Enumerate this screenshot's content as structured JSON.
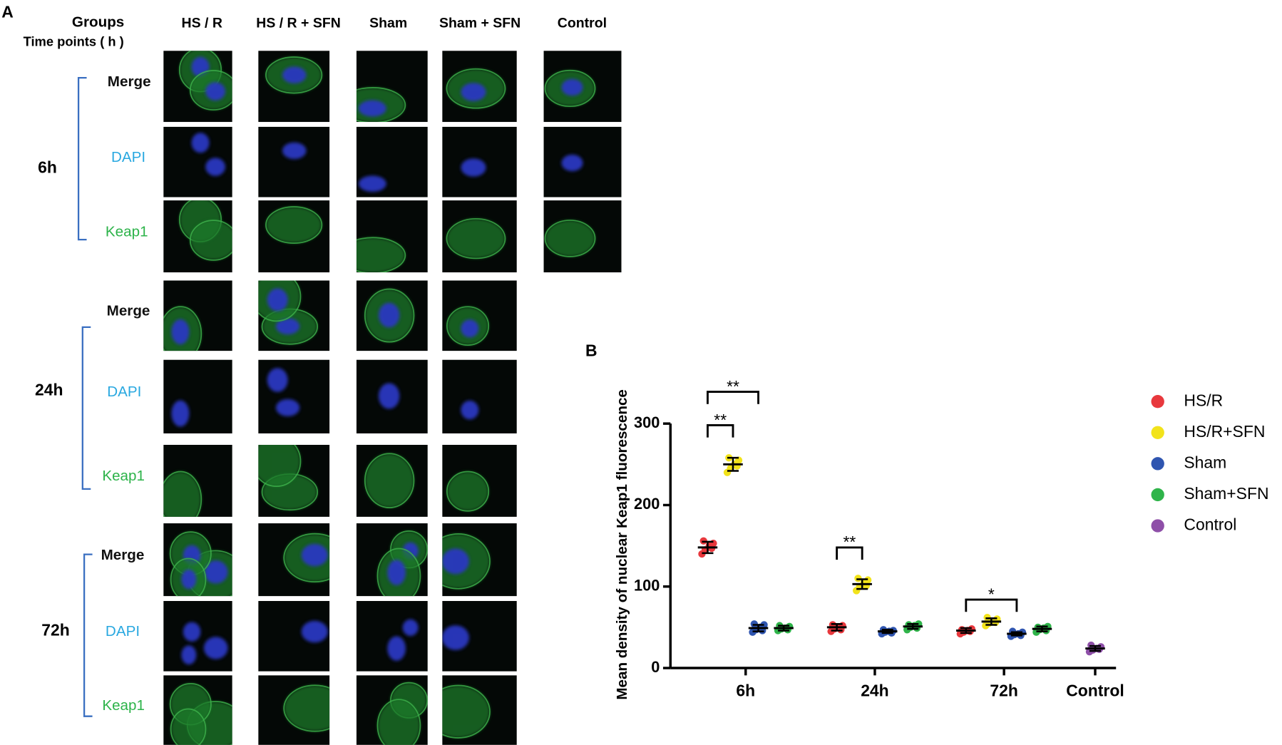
{
  "panel_a": {
    "label": "A",
    "header": {
      "groups": "Groups",
      "time_points": "Time points ( h )",
      "columns": [
        "HS / R",
        "HS / R + SFN",
        "Sham",
        "Sham + SFN",
        "Control"
      ]
    },
    "rows": [
      {
        "time": "6h",
        "channels": [
          "Merge",
          "DAPI",
          "Keap1"
        ]
      },
      {
        "time": "24h",
        "channels": [
          "Merge",
          "DAPI",
          "Keap1"
        ]
      },
      {
        "time": "72h",
        "channels": [
          "Merge",
          "DAPI",
          "Keap1"
        ]
      }
    ]
  },
  "chart_data": {
    "type": "scatter",
    "panel_label": "B",
    "ylabel": "Mean density of nuclear Keap1 fluorescence",
    "categories": [
      "6h",
      "24h",
      "72h",
      "Control"
    ],
    "ylim": [
      0,
      300
    ],
    "yticks": [
      0,
      100,
      200,
      300
    ],
    "series": [
      {
        "name": "HS/R",
        "color": "#e8383d",
        "values": [
          148,
          50,
          46,
          null
        ],
        "errors": [
          7,
          4,
          3,
          null
        ],
        "points": [
          [
            140,
            145,
            150,
            153,
            156,
            147
          ],
          [
            45,
            48,
            50,
            52,
            53,
            47
          ],
          [
            42,
            44,
            46,
            48,
            47,
            45
          ],
          null
        ]
      },
      {
        "name": "HS/R+SFN",
        "color": "#f2e31b",
        "values": [
          250,
          103,
          57,
          null
        ],
        "errors": [
          8,
          6,
          4,
          null
        ],
        "points": [
          [
            240,
            245,
            250,
            255,
            258,
            248
          ],
          [
            95,
            100,
            104,
            108,
            110,
            101
          ],
          [
            52,
            55,
            57,
            60,
            62,
            56
          ],
          null
        ]
      },
      {
        "name": "Sham",
        "color": "#2f55b0",
        "values": [
          49,
          45,
          42,
          null
        ],
        "errors": [
          4,
          2,
          2,
          null
        ],
        "points": [
          [
            44,
            47,
            50,
            53,
            54,
            46
          ],
          [
            42,
            44,
            45,
            46,
            47,
            43
          ],
          [
            39,
            41,
            42,
            44,
            45,
            40
          ],
          null
        ]
      },
      {
        "name": "Sham+SFN",
        "color": "#2fb44a",
        "values": [
          49,
          51,
          48,
          null
        ],
        "errors": [
          3,
          3,
          3,
          null
        ],
        "points": [
          [
            46,
            48,
            49,
            51,
            52,
            47
          ],
          [
            47,
            50,
            52,
            54,
            53,
            49
          ],
          [
            44,
            47,
            49,
            51,
            50,
            46
          ],
          null
        ]
      },
      {
        "name": "Control",
        "color": "#8e4fa8",
        "values": [
          null,
          null,
          null,
          24
        ],
        "errors": [
          null,
          null,
          null,
          3
        ],
        "points": [
          null,
          null,
          null,
          [
            20,
            22,
            24,
            26,
            28,
            23
          ]
        ]
      }
    ],
    "annotations": [
      {
        "label": "**",
        "category": 0,
        "from": 0,
        "to": 1,
        "y": 298
      },
      {
        "label": "**",
        "category": 0,
        "from": 0,
        "to": 2,
        "y": 339
      },
      {
        "label": "**",
        "category": 1,
        "from": 0,
        "to": 1,
        "y": 148
      },
      {
        "label": "*",
        "category": 2,
        "from": 0,
        "to": 2,
        "y": 84
      }
    ]
  }
}
